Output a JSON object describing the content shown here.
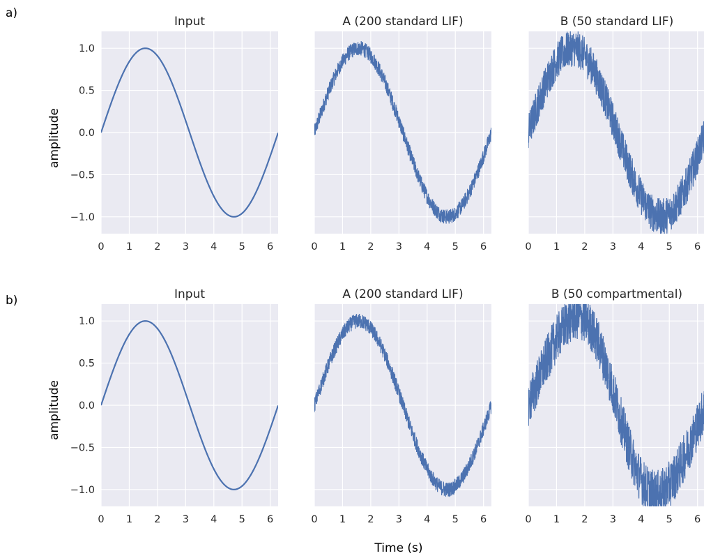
{
  "figure": {
    "row_tags": [
      "a)",
      "b)"
    ],
    "xlabel": "Time (s)",
    "ylabel": "amplitude",
    "line_color": "#4c72b0",
    "background_color": "#eaeaf2"
  },
  "chart_data": [
    {
      "type": "line",
      "row": "a)",
      "title": "Input",
      "xlim": [
        0,
        6.28
      ],
      "ylim": [
        -1.2,
        1.2
      ],
      "xticks": [
        "0",
        "1",
        "2",
        "3",
        "4",
        "5",
        "6"
      ],
      "yticks": [
        "1.0",
        "0.5",
        "0.0",
        "−0.5",
        "−1.0"
      ],
      "grid": true,
      "signal": "sin",
      "noise_band": 0,
      "series": [
        {
          "x": [
            0,
            0.785,
            1.571,
            2.356,
            3.142,
            3.927,
            4.712,
            5.498,
            6.283
          ],
          "y": [
            0,
            0.71,
            1.0,
            0.71,
            0,
            -0.71,
            -1.0,
            -0.71,
            0
          ]
        }
      ]
    },
    {
      "type": "line",
      "row": "a)",
      "title": "A (200 standard LIF)",
      "xlim": [
        0,
        6.28
      ],
      "ylim": [
        -1.2,
        1.2
      ],
      "xticks": [
        "0",
        "1",
        "2",
        "3",
        "4",
        "5",
        "6"
      ],
      "yticks": [],
      "grid": true,
      "signal": "sin",
      "noise_band": 0.09,
      "series": [
        {
          "x": [
            0,
            0.785,
            1.571,
            2.356,
            3.142,
            3.927,
            4.712,
            5.498,
            6.283
          ],
          "y": [
            0,
            0.7,
            1.0,
            0.7,
            0,
            -0.7,
            -1.0,
            -0.7,
            0
          ]
        }
      ]
    },
    {
      "type": "line",
      "row": "a)",
      "title": "B (50 standard LIF)",
      "xlim": [
        0,
        6.28
      ],
      "ylim": [
        -1.2,
        1.2
      ],
      "xticks": [
        "0",
        "1",
        "2",
        "3",
        "4",
        "5",
        "6"
      ],
      "yticks": [],
      "grid": true,
      "signal": "sin",
      "noise_band": 0.22,
      "series": [
        {
          "x": [
            0,
            0.785,
            1.571,
            2.356,
            3.142,
            3.927,
            4.712,
            5.498,
            6.283
          ],
          "y": [
            0,
            0.7,
            1.0,
            0.7,
            0,
            -0.7,
            -1.0,
            -0.7,
            0
          ]
        }
      ]
    },
    {
      "type": "line",
      "row": "b)",
      "title": "Input",
      "xlim": [
        0,
        6.28
      ],
      "ylim": [
        -1.2,
        1.2
      ],
      "xticks": [
        "0",
        "1",
        "2",
        "3",
        "4",
        "5",
        "6"
      ],
      "yticks": [
        "1.0",
        "0.5",
        "0.0",
        "−0.5",
        "−1.0"
      ],
      "grid": true,
      "signal": "sin",
      "noise_band": 0,
      "series": [
        {
          "x": [
            0,
            0.785,
            1.571,
            2.356,
            3.142,
            3.927,
            4.712,
            5.498,
            6.283
          ],
          "y": [
            0,
            0.71,
            1.0,
            0.71,
            0,
            -0.71,
            -1.0,
            -0.71,
            0
          ]
        }
      ]
    },
    {
      "type": "line",
      "row": "b)",
      "title": "A (200 standard LIF)",
      "xlim": [
        0,
        6.28
      ],
      "ylim": [
        -1.2,
        1.2
      ],
      "xticks": [
        "0",
        "1",
        "2",
        "3",
        "4",
        "5",
        "6"
      ],
      "yticks": [],
      "grid": true,
      "signal": "sin",
      "noise_band": 0.09,
      "series": [
        {
          "x": [
            0,
            0.785,
            1.571,
            2.356,
            3.142,
            3.927,
            4.712,
            5.498,
            6.283
          ],
          "y": [
            0,
            0.7,
            1.0,
            0.7,
            0,
            -0.7,
            -1.0,
            -0.7,
            0
          ]
        }
      ]
    },
    {
      "type": "line",
      "row": "b)",
      "title": "B (50 compartmental)",
      "xlim": [
        0,
        6.28
      ],
      "ylim": [
        -1.2,
        1.2
      ],
      "xticks": [
        "0",
        "1",
        "2",
        "3",
        "4",
        "5",
        "6"
      ],
      "yticks": [],
      "grid": true,
      "signal": "sin_skewed",
      "noise_band": 0.28,
      "series": [
        {
          "x": [
            0,
            0.785,
            1.571,
            2.356,
            3.142,
            3.927,
            4.712,
            5.498,
            6.283
          ],
          "y": [
            0,
            0.75,
            1.05,
            0.9,
            0.1,
            -0.65,
            -1.0,
            -0.75,
            0
          ]
        }
      ]
    }
  ]
}
